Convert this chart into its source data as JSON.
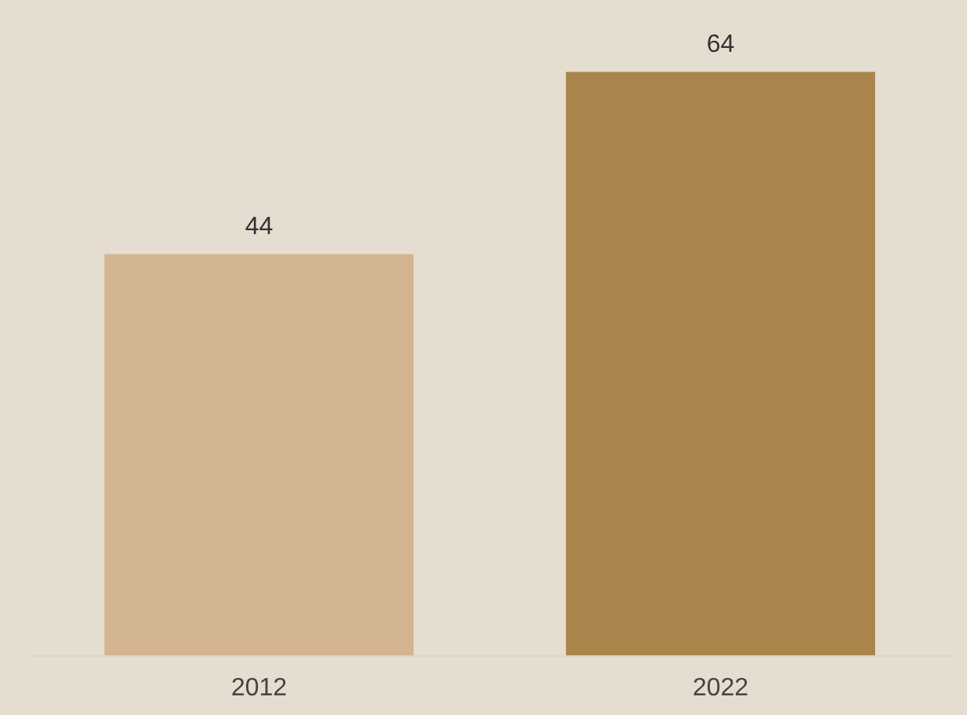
{
  "chart_data": {
    "type": "bar",
    "categories": [
      "2012",
      "2022"
    ],
    "values": [
      44,
      64
    ],
    "colors": [
      "#d2b48f",
      "#a9854c"
    ],
    "data_labels": true
  }
}
